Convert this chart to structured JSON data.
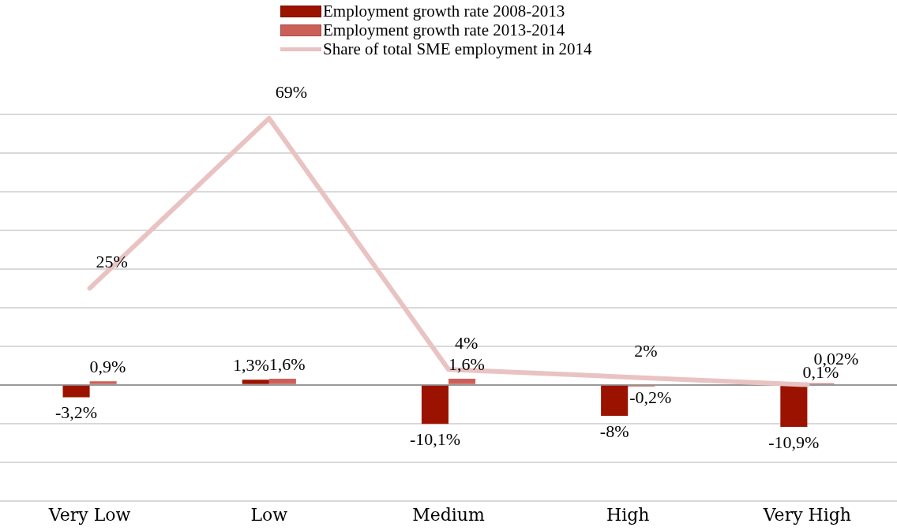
{
  "chart_data": {
    "type": "bar",
    "categories": [
      "Very Low",
      "Low",
      "Medium",
      "High",
      "Very High"
    ],
    "series": [
      {
        "name": "Employment growth rate 2008-2013",
        "color": "#9b1300",
        "values": [
          -3.2,
          1.3,
          -10.1,
          -8,
          -10.9
        ],
        "value_labels": [
          "-3,2%",
          "1,3%",
          "-10,1%",
          "-8%",
          "-10,9%"
        ]
      },
      {
        "name": "Employment growth rate 2013-2014",
        "color": "#cd5f59",
        "values": [
          0.9,
          1.6,
          1.6,
          -0.2,
          0.1
        ],
        "value_labels": [
          "0,9%",
          "1,6%",
          "1,6%",
          "-0,2%",
          "0,1%"
        ]
      },
      {
        "name": "Share of total SME employment in 2014",
        "type": "line",
        "color": "#e9c3c2",
        "values": [
          25,
          69,
          4,
          2,
          0.02
        ],
        "value_labels": [
          "25%",
          "69%",
          "4%",
          "2%",
          "0,02%"
        ]
      }
    ],
    "ylim": [
      -30,
      70
    ],
    "yticks": [
      {
        "value": -30,
        "label": null
      },
      {
        "value": -20,
        "label": null
      },
      {
        "value": -10,
        "label": null
      },
      {
        "value": 0,
        "label": null
      },
      {
        "value": 10,
        "label": null
      },
      {
        "value": 20,
        "label": null
      },
      {
        "value": 30,
        "label": null
      },
      {
        "value": 40,
        "label": null
      },
      {
        "value": 50,
        "label": null
      },
      {
        "value": 60,
        "label": null
      },
      {
        "value": 70,
        "label": null
      }
    ],
    "tick_labels": "x",
    "grid": "y",
    "legend": "top",
    "marker": "none"
  }
}
